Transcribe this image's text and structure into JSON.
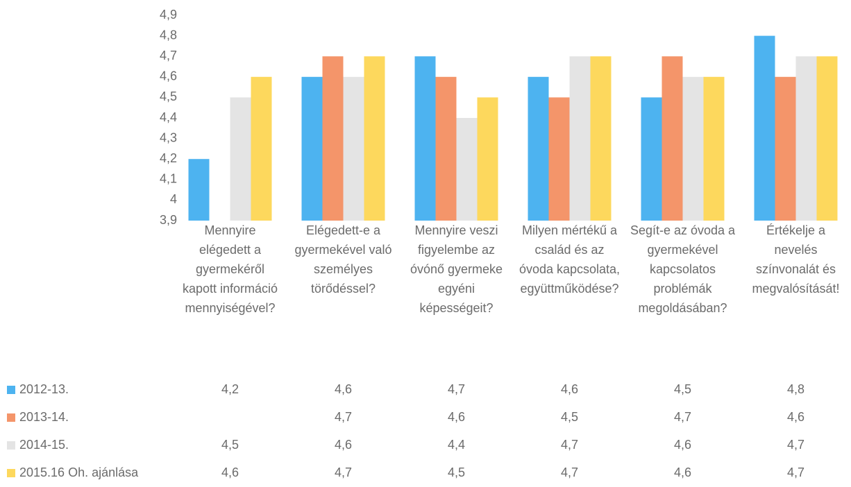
{
  "chart_data": {
    "type": "bar",
    "categories": [
      "Mennyire elégedett a gyermekéről kapott információ mennyiségével?",
      "Elégedett-e a gyermekével való személyes törődéssel?",
      "Mennyire veszi figyelembe az óvónő gyermeke egyéni képességeit?",
      "Milyen mértékű a család és az óvoda kapcsolata, együttműködése?",
      "Segít-e az óvoda a gyermekével kapcsolatos problémák megoldásában?",
      "Értékelje a nevelés színvonalát és megvalósítását!"
    ],
    "series": [
      {
        "name": "2012-13.",
        "color": "#4db3f0",
        "values": [
          4.2,
          4.6,
          4.7,
          4.6,
          4.5,
          4.8
        ],
        "value_labels": [
          "4,2",
          "4,6",
          "4,7",
          "4,6",
          "4,5",
          "4,8"
        ]
      },
      {
        "name": "2013-14.",
        "color": "#f4956a",
        "values": [
          null,
          4.7,
          4.6,
          4.5,
          4.7,
          4.6
        ],
        "value_labels": [
          null,
          "4,7",
          "4,6",
          "4,5",
          "4,7",
          "4,6"
        ]
      },
      {
        "name": "2014-15.",
        "color": "#e4e4e4",
        "values": [
          4.5,
          4.6,
          4.4,
          4.7,
          4.6,
          4.7
        ],
        "value_labels": [
          "4,5",
          "4,6",
          "4,4",
          "4,7",
          "4,6",
          "4,7"
        ]
      },
      {
        "name": "2015.16 Oh. ajánlása",
        "color": "#fdd85d",
        "values": [
          4.6,
          4.7,
          4.5,
          4.7,
          4.6,
          4.7
        ],
        "value_labels": [
          "4,6",
          "4,7",
          "4,5",
          "4,7",
          "4,6",
          "4,7"
        ]
      }
    ],
    "ylim": [
      3.9,
      4.9
    ],
    "yticks": [
      {
        "value": 3.9,
        "label": "3,9"
      },
      4,
      {
        "value": 4.1,
        "label": "4,1"
      },
      {
        "value": 4.2,
        "label": "4,2"
      },
      {
        "value": 4.3,
        "label": "4,3"
      },
      {
        "value": 4.4,
        "label": "4,4"
      },
      {
        "value": 4.5,
        "label": "4,5"
      },
      {
        "value": 4.6,
        "label": "4,6"
      },
      {
        "value": 4.7,
        "label": "4,7"
      },
      {
        "value": 4.8,
        "label": "4,8"
      },
      {
        "value": 4.9,
        "label": "4,9"
      }
    ]
  }
}
